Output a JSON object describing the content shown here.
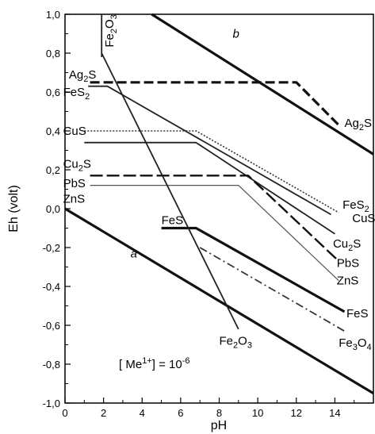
{
  "chart_data": {
    "type": "line",
    "xlabel": "pH",
    "ylabel": "Eh (volt)",
    "xlim": [
      0,
      16
    ],
    "ylim": [
      -1.0,
      1.0
    ],
    "x_ticks": [
      0,
      2,
      4,
      6,
      8,
      10,
      12,
      14
    ],
    "x_tick_labels": [
      "0",
      "2",
      "4",
      "6",
      "8",
      "10",
      "12",
      "14"
    ],
    "y_ticks": [
      1.0,
      0.8,
      0.6,
      0.4,
      0.2,
      0.0,
      -0.2,
      -0.4,
      -0.6,
      -0.8,
      -1.0
    ],
    "y_tick_labels": [
      "1,0",
      "0,8",
      "0,6",
      "0,4",
      "0,2",
      "0,0",
      "-0,2",
      "-0,4",
      "-0,6",
      "-0,8",
      "-1,0"
    ],
    "grid": false,
    "annotation": {
      "pre": "[ Me",
      "sup1": "1+",
      "mid": "] = 10",
      "sup2": "-6"
    },
    "series": [
      {
        "key": "a",
        "name": "a",
        "style": "solid-thick",
        "x": [
          0,
          16
        ],
        "y": [
          0.0,
          -0.95
        ]
      },
      {
        "key": "b",
        "name": "b",
        "style": "solid-thick",
        "x": [
          4.5,
          16
        ],
        "y": [
          1.0,
          0.28
        ]
      },
      {
        "key": "ag2s",
        "name": "Ag2S",
        "style": "dashed-thick",
        "x": [
          1.3,
          12,
          14.3
        ],
        "y": [
          0.65,
          0.65,
          0.42
        ]
      },
      {
        "key": "fes2",
        "name": "FeS2",
        "style": "solid",
        "x": [
          1.2,
          2.2,
          13.8
        ],
        "y": [
          0.63,
          0.63,
          -0.03
        ]
      },
      {
        "key": "cus",
        "name": "CuS",
        "style": "dotted",
        "x": [
          1.0,
          6.8,
          14.2
        ],
        "y": [
          0.4,
          0.4,
          -0.02
        ]
      },
      {
        "key": "cu2s",
        "name": "Cu2S",
        "style": "solid",
        "x": [
          1.0,
          6.8,
          14.0
        ],
        "y": [
          0.34,
          0.34,
          -0.13
        ]
      },
      {
        "key": "pbs",
        "name": "PbS",
        "style": "long-dash",
        "x": [
          1.3,
          9.5,
          14.2
        ],
        "y": [
          0.17,
          0.17,
          -0.27
        ]
      },
      {
        "key": "zns",
        "name": "ZnS",
        "style": "solid-thin",
        "x": [
          1.3,
          9.0,
          14.2
        ],
        "y": [
          0.12,
          0.12,
          -0.37
        ]
      },
      {
        "key": "fes",
        "name": "FeS",
        "style": "solid-thick",
        "x": [
          5.0,
          6.8,
          14.5
        ],
        "y": [
          -0.1,
          -0.1,
          -0.53
        ]
      },
      {
        "key": "fe2o3_steep",
        "name": "",
        "style": "solid",
        "x": [
          1.9,
          9.0
        ],
        "y": [
          0.8,
          -0.62
        ]
      },
      {
        "key": "fe2o3_vert",
        "name": "",
        "style": "solid",
        "x": [
          1.9,
          1.9
        ],
        "y": [
          1.0,
          0.78
        ]
      },
      {
        "key": "fe3o4",
        "name": "Fe3O4",
        "style": "dash-dot",
        "x": [
          7.0,
          14.5
        ],
        "y": [
          -0.2,
          -0.63
        ]
      }
    ],
    "labels": [
      {
        "key": "lab_fe2o3_top",
        "text": "Fe2O3",
        "x": 2.5,
        "y": 0.83,
        "rotate": -90
      },
      {
        "key": "lab_b",
        "text": "b",
        "x": 8.7,
        "y": 0.88,
        "italic": true
      },
      {
        "key": "lab_ag2s_left",
        "text": "Ag2S",
        "x": 0.2,
        "y": 0.67
      },
      {
        "key": "lab_fes2_left",
        "text": "FeS2",
        "x": -0.1,
        "y": 0.58
      },
      {
        "key": "lab_cus_left",
        "text": "CuS",
        "x": -0.1,
        "y": 0.38
      },
      {
        "key": "lab_cu2s_left",
        "text": "Cu2S",
        "x": -0.1,
        "y": 0.21
      },
      {
        "key": "lab_pbs_left",
        "text": "PbS",
        "x": -0.1,
        "y": 0.11
      },
      {
        "key": "lab_zns_left",
        "text": "ZnS",
        "x": -0.1,
        "y": 0.03
      },
      {
        "key": "lab_fes_left",
        "text": "FeS",
        "x": 5.0,
        "y": -0.08
      },
      {
        "key": "lab_a",
        "text": "a",
        "x": 3.4,
        "y": -0.25,
        "italic": true
      },
      {
        "key": "lab_fe2o3_bottom",
        "text": "Fe2O3",
        "x": 8.0,
        "y": -0.7
      },
      {
        "key": "lab_ag2s_right",
        "text": "Ag2S",
        "x": 14.5,
        "y": 0.42
      },
      {
        "key": "lab_fes2_right",
        "text": "FeS2",
        "x": 14.4,
        "y": 0.0
      },
      {
        "key": "lab_cus_right",
        "text": "CuS",
        "x": 14.9,
        "y": -0.07
      },
      {
        "key": "lab_cu2s_right",
        "text": "Cu2S",
        "x": 13.9,
        "y": -0.2
      },
      {
        "key": "lab_pbs_right",
        "text": "PbS",
        "x": 14.1,
        "y": -0.3
      },
      {
        "key": "lab_zns_right",
        "text": "ZnS",
        "x": 14.1,
        "y": -0.39
      },
      {
        "key": "lab_fes_right",
        "text": "FeS",
        "x": 14.6,
        "y": -0.56
      },
      {
        "key": "lab_fe3o4_right",
        "text": "Fe3O4",
        "x": 14.2,
        "y": -0.71
      }
    ]
  }
}
